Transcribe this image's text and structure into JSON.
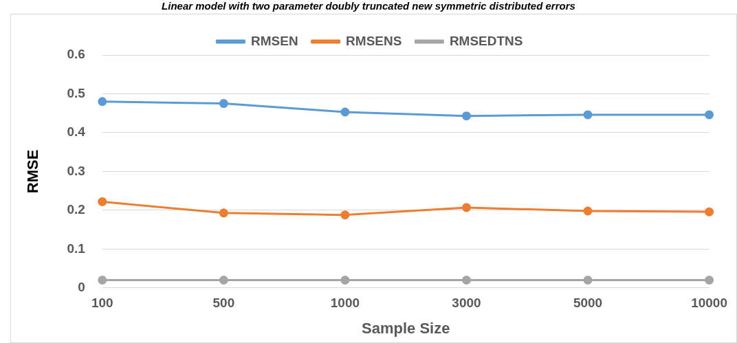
{
  "chart_data": {
    "type": "line",
    "title": "Linear model with two parameter doubly truncated new symmetric distributed errors",
    "xlabel": "Sample Size",
    "ylabel": "RMSE",
    "categories": [
      "100",
      "500",
      "1000",
      "3000",
      "5000",
      "10000"
    ],
    "series": [
      {
        "name": "RMSEN",
        "color": "#5b9bd5",
        "values": [
          0.48,
          0.475,
          0.453,
          0.443,
          0.446,
          0.446
        ]
      },
      {
        "name": "RMSENS",
        "color": "#ed7d31",
        "values": [
          0.222,
          0.193,
          0.188,
          0.207,
          0.198,
          0.196
        ]
      },
      {
        "name": "RMSEDTNS",
        "color": "#a5a5a5",
        "values": [
          0.02,
          0.02,
          0.02,
          0.02,
          0.02,
          0.02
        ]
      }
    ],
    "ylim": [
      0,
      0.6
    ],
    "yticks": [
      0,
      0.1,
      0.2,
      0.3,
      0.4,
      0.5,
      0.6
    ],
    "grid": "y",
    "legend": "top",
    "marker": "circle",
    "line_style": "solid"
  }
}
